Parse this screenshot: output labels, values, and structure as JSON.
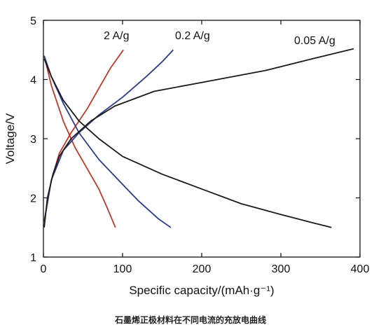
{
  "caption": "石墨烯正极材料在不同电流的充放电曲线",
  "chart_data": {
    "type": "line",
    "xlabel": "Specific capacity/(mAh·g⁻¹)",
    "ylabel": "Voltage/V",
    "xlim": [
      0,
      400
    ],
    "ylim": [
      1,
      5
    ],
    "xticks": [
      0,
      100,
      200,
      300,
      400
    ],
    "yticks": [
      1,
      2,
      3,
      4,
      5
    ],
    "grid": false,
    "series": [
      {
        "name": "2 A/g",
        "color": "#c0392b",
        "charge": [
          [
            1,
            1.6
          ],
          [
            10,
            2.3
          ],
          [
            20,
            2.75
          ],
          [
            35,
            3.1
          ],
          [
            55,
            3.5
          ],
          [
            70,
            3.85
          ],
          [
            85,
            4.2
          ],
          [
            101,
            4.5
          ]
        ],
        "discharge": [
          [
            1,
            4.4
          ],
          [
            10,
            3.9
          ],
          [
            25,
            3.3
          ],
          [
            40,
            2.85
          ],
          [
            55,
            2.5
          ],
          [
            70,
            2.15
          ],
          [
            80,
            1.85
          ],
          [
            91,
            1.5
          ]
        ]
      },
      {
        "name": "0.2 A/g",
        "color": "#2e3a8c",
        "charge": [
          [
            1,
            1.6
          ],
          [
            10,
            2.3
          ],
          [
            25,
            2.8
          ],
          [
            45,
            3.1
          ],
          [
            70,
            3.4
          ],
          [
            100,
            3.7
          ],
          [
            130,
            4.05
          ],
          [
            150,
            4.3
          ],
          [
            164,
            4.5
          ]
        ],
        "discharge": [
          [
            1,
            4.4
          ],
          [
            10,
            4.05
          ],
          [
            25,
            3.6
          ],
          [
            45,
            3.1
          ],
          [
            70,
            2.65
          ],
          [
            95,
            2.3
          ],
          [
            120,
            1.95
          ],
          [
            145,
            1.65
          ],
          [
            161,
            1.5
          ]
        ]
      },
      {
        "name": "0.05 A/g",
        "color": "#1a1a1a",
        "charge": [
          [
            1,
            1.5
          ],
          [
            5,
            2.0
          ],
          [
            12,
            2.4
          ],
          [
            20,
            2.7
          ],
          [
            35,
            3.0
          ],
          [
            60,
            3.3
          ],
          [
            90,
            3.55
          ],
          [
            140,
            3.8
          ],
          [
            200,
            3.95
          ],
          [
            280,
            4.15
          ],
          [
            340,
            4.35
          ],
          [
            392,
            4.52
          ]
        ],
        "discharge": [
          [
            1,
            4.35
          ],
          [
            10,
            4.05
          ],
          [
            25,
            3.65
          ],
          [
            45,
            3.3
          ],
          [
            70,
            3.0
          ],
          [
            100,
            2.7
          ],
          [
            150,
            2.4
          ],
          [
            200,
            2.15
          ],
          [
            250,
            1.9
          ],
          [
            300,
            1.72
          ],
          [
            340,
            1.58
          ],
          [
            364,
            1.5
          ]
        ]
      }
    ]
  }
}
